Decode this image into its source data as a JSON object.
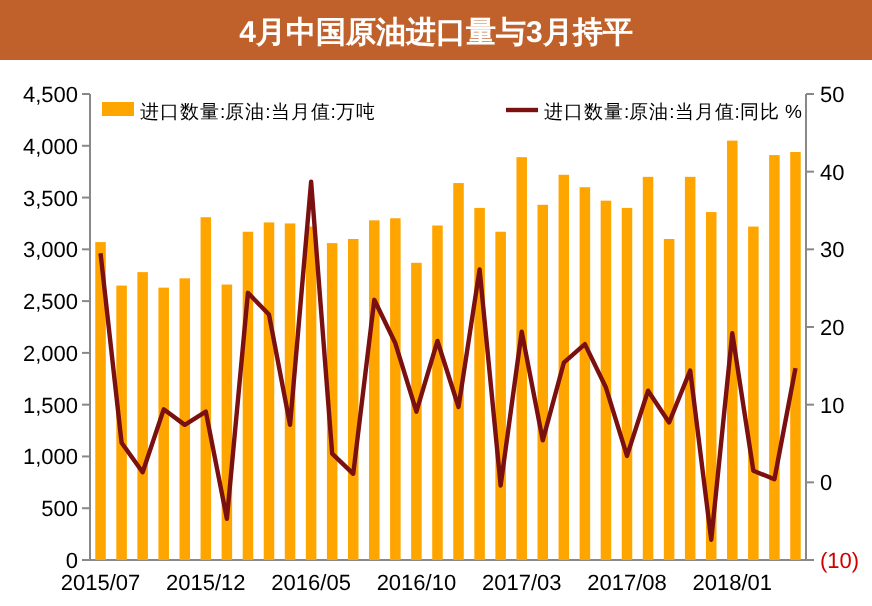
{
  "chart_data": {
    "type": "bar",
    "title": "4月中国原油进口量与3月持平",
    "categories": [
      "2015/07",
      null,
      null,
      null,
      null,
      "2015/12",
      null,
      null,
      null,
      null,
      "2016/05",
      null,
      null,
      null,
      null,
      "2016/10",
      null,
      null,
      null,
      null,
      "2017/03",
      null,
      null,
      null,
      null,
      "2017/08",
      null,
      null,
      null,
      null,
      "2018/01",
      null,
      null,
      null
    ],
    "series": [
      {
        "name": "进口数量:原油:当月值:万吨",
        "color": "#ffa500",
        "values": [
          3070,
          2650,
          2780,
          2630,
          2720,
          3310,
          2660,
          3170,
          3260,
          3250,
          3220,
          3060,
          3100,
          3280,
          3300,
          2870,
          3230,
          3640,
          3400,
          3170,
          3890,
          3430,
          3720,
          3600,
          3470,
          3400,
          3700,
          3100,
          3700,
          3360,
          4050,
          3220,
          3910,
          3940
        ]
      },
      {
        "name": "进口数量:原油:当月值:同比 %",
        "color": "#7b1010",
        "type": "line",
        "axis": "y2",
        "values": [
          29.5,
          5.1,
          1.3,
          9.4,
          7.4,
          9.1,
          -4.7,
          24.4,
          21.6,
          7.4,
          38.7,
          3.7,
          1.1,
          23.5,
          17.9,
          9.1,
          18.2,
          9.7,
          27.4,
          -0.4,
          19.4,
          5.4,
          15.4,
          17.8,
          12.2,
          3.4,
          11.8,
          7.7,
          14.4,
          -7.4,
          19.2,
          1.5,
          0.4,
          14.7
        ]
      }
    ],
    "ylim": [
      0,
      4500
    ],
    "yticks": [
      0,
      500,
      {
        "value": 1000,
        "label": "1,000"
      },
      {
        "value": 1500,
        "label": "1,500"
      },
      {
        "value": 2000,
        "label": "2,000"
      },
      {
        "value": 2500,
        "label": "2,500"
      },
      {
        "value": 3000,
        "label": "3,000"
      },
      {
        "value": 3500,
        "label": "3,500"
      },
      {
        "value": 4000,
        "label": "4,000"
      },
      {
        "value": 4500,
        "label": "4,500"
      }
    ],
    "y2lim": [
      -10,
      50
    ],
    "y2ticks": [
      {
        "value": -10,
        "label": "(10)"
      },
      0,
      10,
      20,
      30,
      40,
      50
    ],
    "legend": "top",
    "grid": false,
    "marker": "none",
    "line_style": "solid"
  }
}
